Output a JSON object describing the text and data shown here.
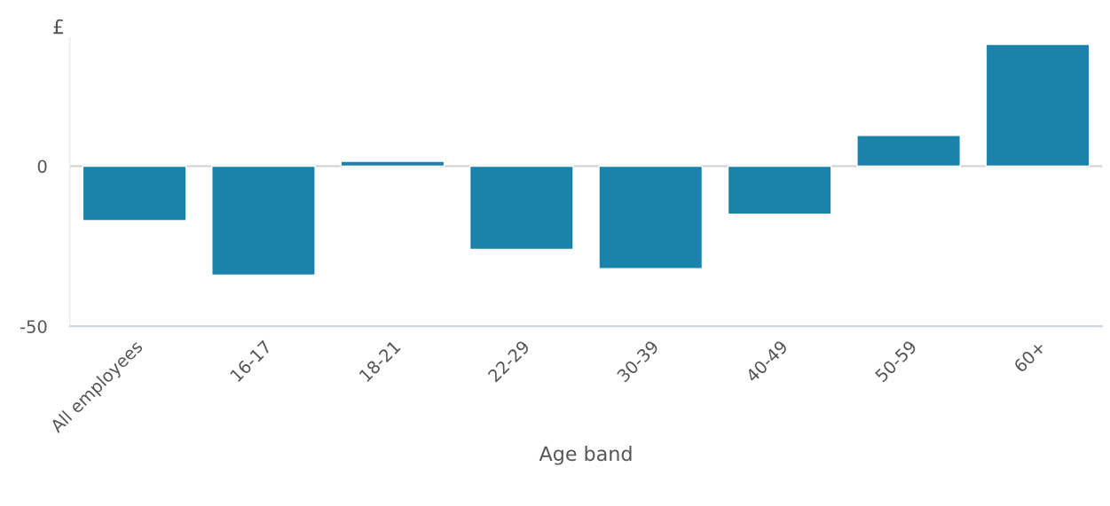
{
  "chart_data": {
    "type": "bar",
    "ylabel": "£",
    "xlabel": "Age band",
    "categories": [
      "All employees",
      "16-17",
      "18-21",
      "22-29",
      "30-39",
      "40-49",
      "50-59",
      "60+"
    ],
    "values": [
      -17,
      -34,
      1.5,
      -26,
      -32,
      -15,
      9.6,
      38
    ],
    "color": "#1a82ab",
    "ylim": [
      -50,
      40
    ],
    "yticks": [
      -50,
      0
    ],
    "grid": "y"
  }
}
